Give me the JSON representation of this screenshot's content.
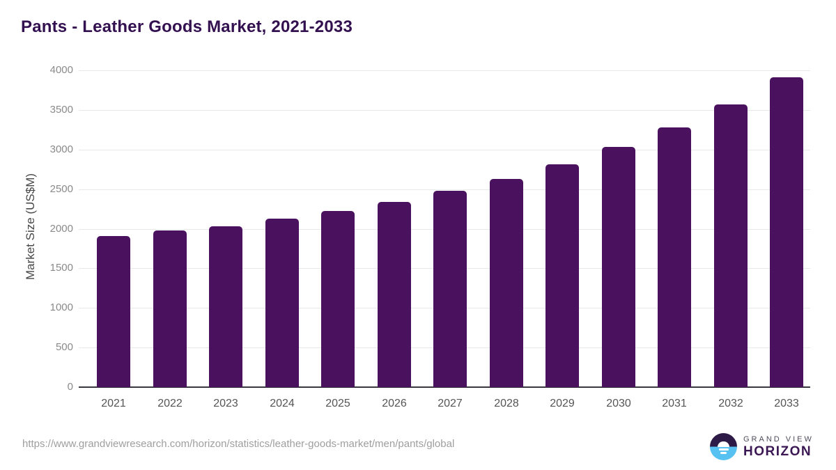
{
  "header": {
    "title": "Pants - Leather Goods Market, 2021-2033"
  },
  "chart_data": {
    "type": "bar",
    "title": "Pants - Leather Goods Market, 2021-2033",
    "categories": [
      "2021",
      "2022",
      "2023",
      "2024",
      "2025",
      "2026",
      "2027",
      "2028",
      "2029",
      "2030",
      "2031",
      "2032",
      "2033"
    ],
    "values": [
      1905,
      1975,
      2035,
      2125,
      2225,
      2340,
      2475,
      2630,
      2815,
      3035,
      3280,
      3570,
      3910
    ],
    "xlabel": "",
    "ylabel": "Market Size (US$M)",
    "ylim": [
      0,
      4000
    ],
    "yticks": [
      0,
      500,
      1000,
      1500,
      2000,
      2500,
      3000,
      3500,
      4000
    ],
    "grid": "horizontal",
    "legend": "none"
  },
  "footer": {
    "source_url": "https://www.grandviewresearch.com/horizon/statistics/leather-goods-market/men/pants/global",
    "brand": {
      "line1": "GRAND VIEW",
      "line2": "HORIZON"
    }
  },
  "colors": {
    "bar": "#4A115E",
    "title": "#33104F",
    "grid": "#E8E8E8",
    "axis_line": "#3A363F",
    "y_tick": "#8A8A8A",
    "x_tick": "#555555",
    "axis_title": "#474747",
    "source": "#9E9E9E",
    "logo_dark": "#2E1A47",
    "logo_blue": "#57C2F1",
    "logo_text_top": "#4F4A5A",
    "logo_text_bottom": "#3B1853"
  }
}
